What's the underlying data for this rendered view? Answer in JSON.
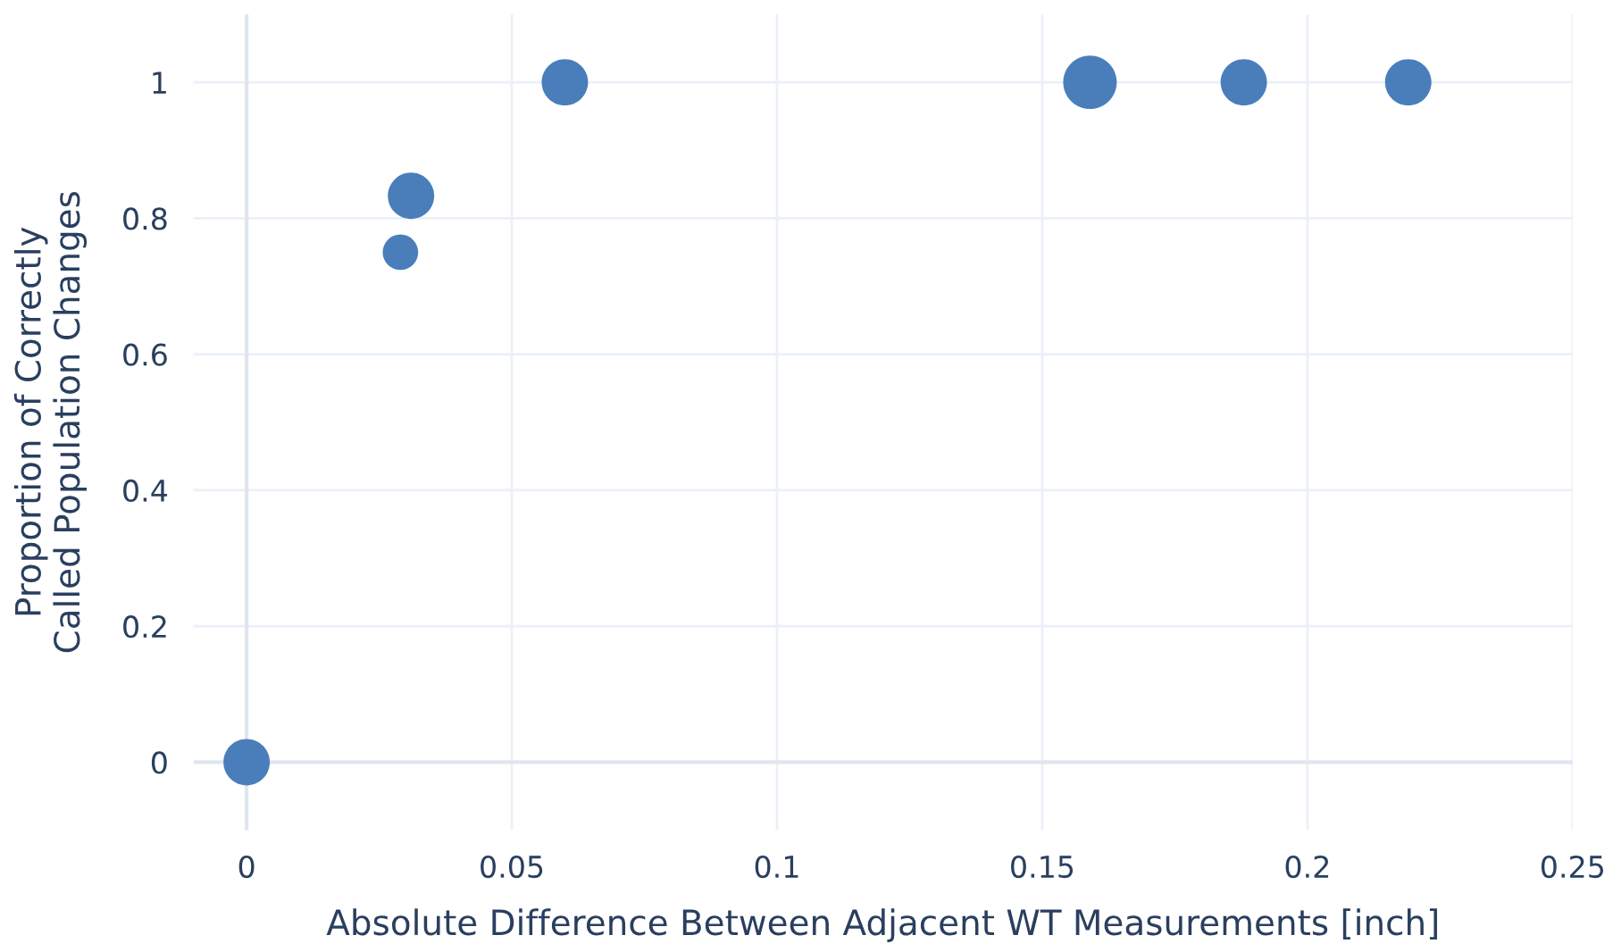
{
  "chart_data": {
    "type": "bubble",
    "xlabel": "Absolute Difference Between Adjacent WT Measurements [inch]",
    "ylabel": "Proportion of Correctly\nCalled Population Changes",
    "series": [
      {
        "color": "#4a7ebb",
        "x": [
          0,
          0.029,
          0.031,
          0.06,
          0.159,
          0.188,
          0.219
        ],
        "values": [
          0,
          0.75,
          0.833,
          1,
          1,
          1,
          1
        ],
        "sizes": [
          0.75,
          0.44,
          0.75,
          0.75,
          1,
          0.75,
          0.75
        ]
      }
    ],
    "xlim": [
      -0.01,
      0.25
    ],
    "ylim": [
      -0.1,
      1.1
    ],
    "xticks": [
      0,
      0.05,
      0.1,
      0.15,
      0.2,
      0.25
    ],
    "yticks": [
      0,
      0.2,
      0.4,
      0.6,
      0.8,
      1
    ],
    "grid": true,
    "legend": false
  }
}
